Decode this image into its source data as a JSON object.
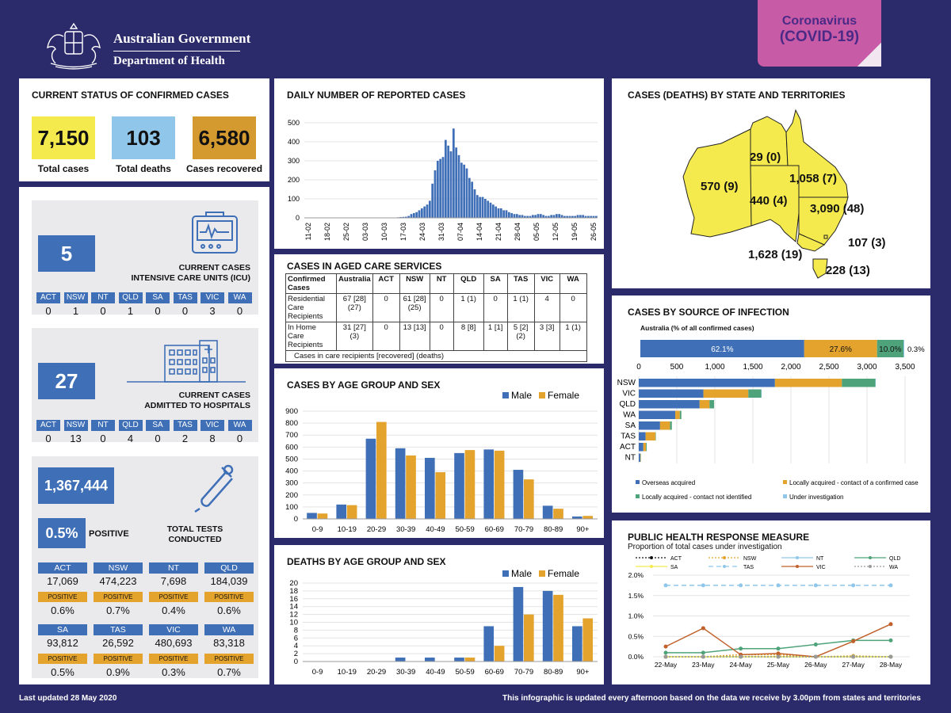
{
  "header": {
    "org_line1": "Australian Government",
    "org_line2": "Department of Health",
    "badge_line1": "Coronavirus",
    "badge_line2": "(COVID-19)"
  },
  "status": {
    "title": "CURRENT STATUS OF CONFIRMED CASES",
    "total_cases": "7,150",
    "total_cases_label": "Total cases",
    "total_deaths": "103",
    "total_deaths_label": "Total deaths",
    "recovered": "6,580",
    "recovered_label": "Cases recovered",
    "colors": {
      "cases": "#f4ea4d",
      "deaths": "#8fc6ea",
      "recovered": "#d49a2f"
    }
  },
  "states": [
    "ACT",
    "NSW",
    "NT",
    "QLD",
    "SA",
    "TAS",
    "VIC",
    "WA"
  ],
  "icu": {
    "count": "5",
    "label_line1": "CURRENT CASES",
    "label_line2": "INTENSIVE CARE UNITS (ICU)",
    "values": [
      "0",
      "1",
      "0",
      "1",
      "0",
      "0",
      "3",
      "0"
    ]
  },
  "hospital": {
    "count": "27",
    "label_line1": "CURRENT CASES",
    "label_line2": "ADMITTED TO HOSPITALS",
    "values": [
      "0",
      "13",
      "0",
      "4",
      "0",
      "2",
      "8",
      "0"
    ]
  },
  "tests": {
    "total": "1,367,444",
    "positive_pct": "0.5%",
    "positive_label": "POSITIVE",
    "label_line1": "TOTAL TESTS",
    "label_line2": "CONDUCTED",
    "positive_tag": "POSITIVE",
    "rows": [
      {
        "state": "ACT",
        "tests": "17,069",
        "pct": "0.6%"
      },
      {
        "state": "NSW",
        "tests": "474,223",
        "pct": "0.7%"
      },
      {
        "state": "NT",
        "tests": "7,698",
        "pct": "0.4%"
      },
      {
        "state": "QLD",
        "tests": "184,039",
        "pct": "0.6%"
      },
      {
        "state": "SA",
        "tests": "93,812",
        "pct": "0.5%"
      },
      {
        "state": "TAS",
        "tests": "26,592",
        "pct": "0.9%"
      },
      {
        "state": "VIC",
        "tests": "480,693",
        "pct": "0.3%"
      },
      {
        "state": "WA",
        "tests": "83,318",
        "pct": "0.7%"
      }
    ]
  },
  "aged_care": {
    "title": "CASES IN AGED CARE SERVICES",
    "headers": [
      "Confirmed Cases",
      "Australia",
      "ACT",
      "NSW",
      "NT",
      "QLD",
      "SA",
      "TAS",
      "VIC",
      "WA"
    ],
    "rows": [
      [
        "Residential Care Recipients",
        "67 [28] (27)",
        "0",
        "61 [28] (25)",
        "0",
        "1 (1)",
        "0",
        "1 (1)",
        "4",
        "0"
      ],
      [
        "In Home Care Recipients",
        "31 [27] (3)",
        "0",
        "13 [13]",
        "0",
        "8 [8]",
        "1 [1]",
        "5 [2] (2)",
        "3 [3]",
        "1 (1)"
      ]
    ],
    "note": "Cases in care recipients [recovered] (deaths)"
  },
  "map": {
    "title": "CASES (DEATHS) BY STATE AND TERRITORIES",
    "labels": {
      "WA": "570 (9)",
      "NT": "29 (0)",
      "QLD": "1,058 (7)",
      "SA": "440 (4)",
      "NSW": "3,090 (48)",
      "ACT": "107 (3)",
      "VIC": "1,628 (19)",
      "TAS": "228 (13)"
    },
    "fill": "#f4ea4d"
  },
  "daily": {
    "title": "DAILY NUMBER OF REPORTED CASES",
    "bar_color": "#3f6fb6"
  },
  "age_cases": {
    "title": "CASES BY AGE GROUP AND SEX",
    "legend_male": "Male",
    "legend_female": "Female"
  },
  "age_deaths": {
    "title": "DEATHS BY AGE GROUP AND SEX",
    "legend_male": "Male",
    "legend_female": "Female"
  },
  "source": {
    "title": "CASES BY SOURCE OF INFECTION",
    "subtitle": "Australia (% of all confirmed cases)",
    "pct_labels": [
      "62.1%",
      "27.6%",
      "10.0%",
      "0.3%"
    ],
    "legend": [
      "Overseas acquired",
      "Locally acquired - contact of a confirmed case",
      "Locally acquired - contact not identified",
      "Under investigation"
    ]
  },
  "phrm": {
    "title": "PUBLIC HEALTH RESPONSE MEASURE",
    "subtitle": "Proportion of total cases under investigation"
  },
  "footer": {
    "updated": "Last updated 28 May 2020",
    "note": "This infographic is updated every afternoon based on the data we receive by 3.00pm from states and territories"
  },
  "chart_data": [
    {
      "type": "bar",
      "id": "daily",
      "title": "DAILY NUMBER OF REPORTED CASES",
      "ylim": [
        0,
        500
      ],
      "yticks": [
        0,
        100,
        200,
        300,
        400,
        500
      ],
      "tick_labels": [
        "11-02",
        "18-02",
        "25-02",
        "03-03",
        "10-03",
        "17-03",
        "24-03",
        "31-03",
        "07-04",
        "14-04",
        "21-04",
        "28-04",
        "05-05",
        "12-05",
        "19-05",
        "26-05"
      ],
      "values": [
        0,
        0,
        0,
        0,
        0,
        0,
        0,
        0,
        0,
        0,
        0,
        0,
        0,
        0,
        0,
        0,
        0,
        0,
        0,
        0,
        0,
        0,
        0,
        0,
        0,
        0,
        0,
        0,
        0,
        0,
        0,
        0,
        0,
        2,
        2,
        3,
        4,
        5,
        6,
        10,
        20,
        25,
        30,
        40,
        50,
        60,
        70,
        90,
        180,
        250,
        300,
        310,
        320,
        410,
        380,
        350,
        470,
        370,
        330,
        290,
        280,
        260,
        210,
        190,
        150,
        120,
        110,
        110,
        100,
        90,
        80,
        70,
        60,
        50,
        50,
        40,
        40,
        30,
        25,
        20,
        20,
        15,
        15,
        10,
        10,
        10,
        15,
        15,
        20,
        20,
        15,
        10,
        10,
        15,
        15,
        20,
        20,
        15,
        10,
        10,
        10,
        10,
        10,
        15,
        15,
        15,
        10,
        10,
        10,
        10,
        10
      ]
    },
    {
      "type": "bar",
      "id": "age_cases",
      "title": "CASES BY AGE GROUP AND SEX",
      "categories": [
        "0-9",
        "10-19",
        "20-29",
        "30-39",
        "40-49",
        "50-59",
        "60-69",
        "70-79",
        "80-89",
        "90+"
      ],
      "ylim": [
        0,
        900
      ],
      "yticks": [
        0,
        100,
        200,
        300,
        400,
        500,
        600,
        700,
        800,
        900
      ],
      "series": [
        {
          "name": "Male",
          "color": "#3f6fb6",
          "values": [
            50,
            120,
            670,
            590,
            510,
            550,
            580,
            410,
            110,
            20
          ]
        },
        {
          "name": "Female",
          "color": "#e3a32c",
          "values": [
            45,
            115,
            810,
            530,
            390,
            575,
            570,
            330,
            85,
            25
          ]
        }
      ]
    },
    {
      "type": "bar",
      "id": "age_deaths",
      "title": "DEATHS BY AGE GROUP AND SEX",
      "categories": [
        "0-9",
        "10-19",
        "20-29",
        "30-39",
        "40-49",
        "50-59",
        "60-69",
        "70-79",
        "80-89",
        "90+"
      ],
      "ylim": [
        0,
        20
      ],
      "yticks": [
        0,
        2,
        4,
        6,
        8,
        10,
        12,
        14,
        16,
        18,
        20
      ],
      "series": [
        {
          "name": "Male",
          "color": "#3f6fb6",
          "values": [
            0,
            0,
            0,
            1,
            1,
            1,
            9,
            19,
            18,
            9
          ]
        },
        {
          "name": "Female",
          "color": "#e3a32c",
          "values": [
            0,
            0,
            0,
            0,
            0,
            1,
            4,
            12,
            17,
            11
          ]
        }
      ]
    },
    {
      "type": "bar",
      "id": "source_pct",
      "title": "Australia (% of all confirmed cases)",
      "series": [
        {
          "name": "Overseas acquired",
          "color": "#3f6fb6",
          "values": [
            62.1
          ]
        },
        {
          "name": "Locally acquired - contact of a confirmed case",
          "color": "#e3a32c",
          "values": [
            27.6
          ]
        },
        {
          "name": "Locally acquired - contact not identified",
          "color": "#4fa37a",
          "values": [
            10.0
          ]
        },
        {
          "name": "Under investigation",
          "color": "#8fc6ea",
          "values": [
            0.3
          ]
        }
      ]
    },
    {
      "type": "bar",
      "id": "source_state",
      "title": "CASES BY SOURCE OF INFECTION",
      "categories": [
        "NSW",
        "VIC",
        "QLD",
        "WA",
        "SA",
        "TAS",
        "ACT",
        "NT"
      ],
      "xlim": [
        0,
        3500
      ],
      "xticks": [
        0,
        500,
        1000,
        1500,
        2000,
        2500,
        3000,
        3500
      ],
      "xtick_labels": [
        "0",
        "500",
        "1,000",
        "1,500",
        "2,000",
        "2,500",
        "3,000",
        "3,500"
      ],
      "series": [
        {
          "name": "Overseas acquired",
          "color": "#3f6fb6",
          "values": [
            1790,
            850,
            800,
            480,
            280,
            90,
            60,
            20
          ]
        },
        {
          "name": "Locally acquired - contact of a confirmed case",
          "color": "#e3a32c",
          "values": [
            880,
            590,
            130,
            60,
            130,
            130,
            35,
            5
          ]
        },
        {
          "name": "Locally acquired - contact not identified",
          "color": "#4fa37a",
          "values": [
            440,
            170,
            60,
            20,
            25,
            5,
            10,
            3
          ]
        },
        {
          "name": "Under investigation",
          "color": "#8fc6ea",
          "values": [
            5,
            5,
            0,
            0,
            0,
            0,
            0,
            0
          ]
        }
      ]
    },
    {
      "type": "line",
      "id": "phrm",
      "title": "PUBLIC HEALTH RESPONSE MEASURE",
      "x": [
        "22-May",
        "23-May",
        "24-May",
        "25-May",
        "26-May",
        "27-May",
        "28-May"
      ],
      "ylim": [
        0,
        2.0
      ],
      "yticks": [
        0,
        0.5,
        1.0,
        1.5,
        2.0
      ],
      "ytick_labels": [
        "0.0%",
        "0.5%",
        "1.0%",
        "1.5%",
        "2.0%"
      ],
      "series": [
        {
          "name": "ACT",
          "color": "#111111",
          "dash": "2,2",
          "values": [
            0,
            0,
            0,
            0,
            0,
            0,
            0
          ]
        },
        {
          "name": "NSW",
          "color": "#e3a32c",
          "dash": "2,2",
          "values": [
            0,
            0,
            0.05,
            0.05,
            0,
            0.02,
            0
          ]
        },
        {
          "name": "NT",
          "color": "#8fc6ea",
          "dash": "",
          "values": [
            0,
            0,
            0,
            0,
            0,
            0,
            0
          ]
        },
        {
          "name": "QLD",
          "color": "#4fa37a",
          "dash": "",
          "values": [
            0.1,
            0.1,
            0.2,
            0.2,
            0.3,
            0.4,
            0.4
          ]
        },
        {
          "name": "SA",
          "color": "#f4ea4d",
          "dash": "",
          "values": [
            0,
            0,
            0,
            0,
            0,
            0,
            0
          ]
        },
        {
          "name": "TAS",
          "color": "#8fc6ea",
          "dash": "6,4",
          "values": [
            1.75,
            1.75,
            1.75,
            1.75,
            1.75,
            1.75,
            1.75
          ]
        },
        {
          "name": "VIC",
          "color": "#c0602a",
          "dash": "",
          "values": [
            0.25,
            0.7,
            0.05,
            0.08,
            0,
            0.38,
            0.8
          ]
        },
        {
          "name": "WA",
          "color": "#999999",
          "dash": "2,2",
          "values": [
            0,
            0,
            0,
            0,
            0,
            0,
            0
          ]
        }
      ]
    }
  ]
}
